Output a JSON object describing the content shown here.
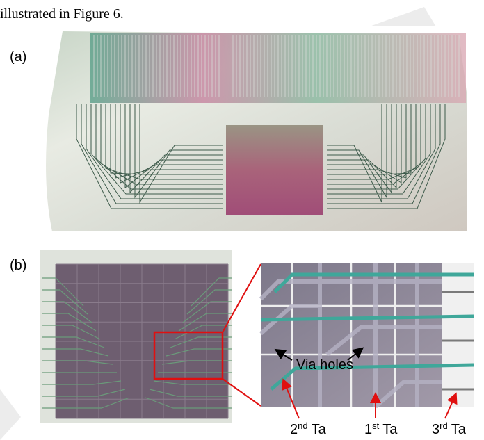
{
  "text": {
    "line": "illustrated in Figure 6."
  },
  "figure": {
    "panels": [
      {
        "label": "(a)"
      },
      {
        "label": "(b)"
      }
    ],
    "annotations": {
      "via_holes": "Via holes",
      "layers": [
        {
          "number": "2",
          "sup": "nd",
          "name": "Ta"
        },
        {
          "number": "1",
          "sup": "st",
          "name": "Ta"
        },
        {
          "number": "3",
          "sup": "rd",
          "name": "Ta"
        }
      ]
    }
  }
}
